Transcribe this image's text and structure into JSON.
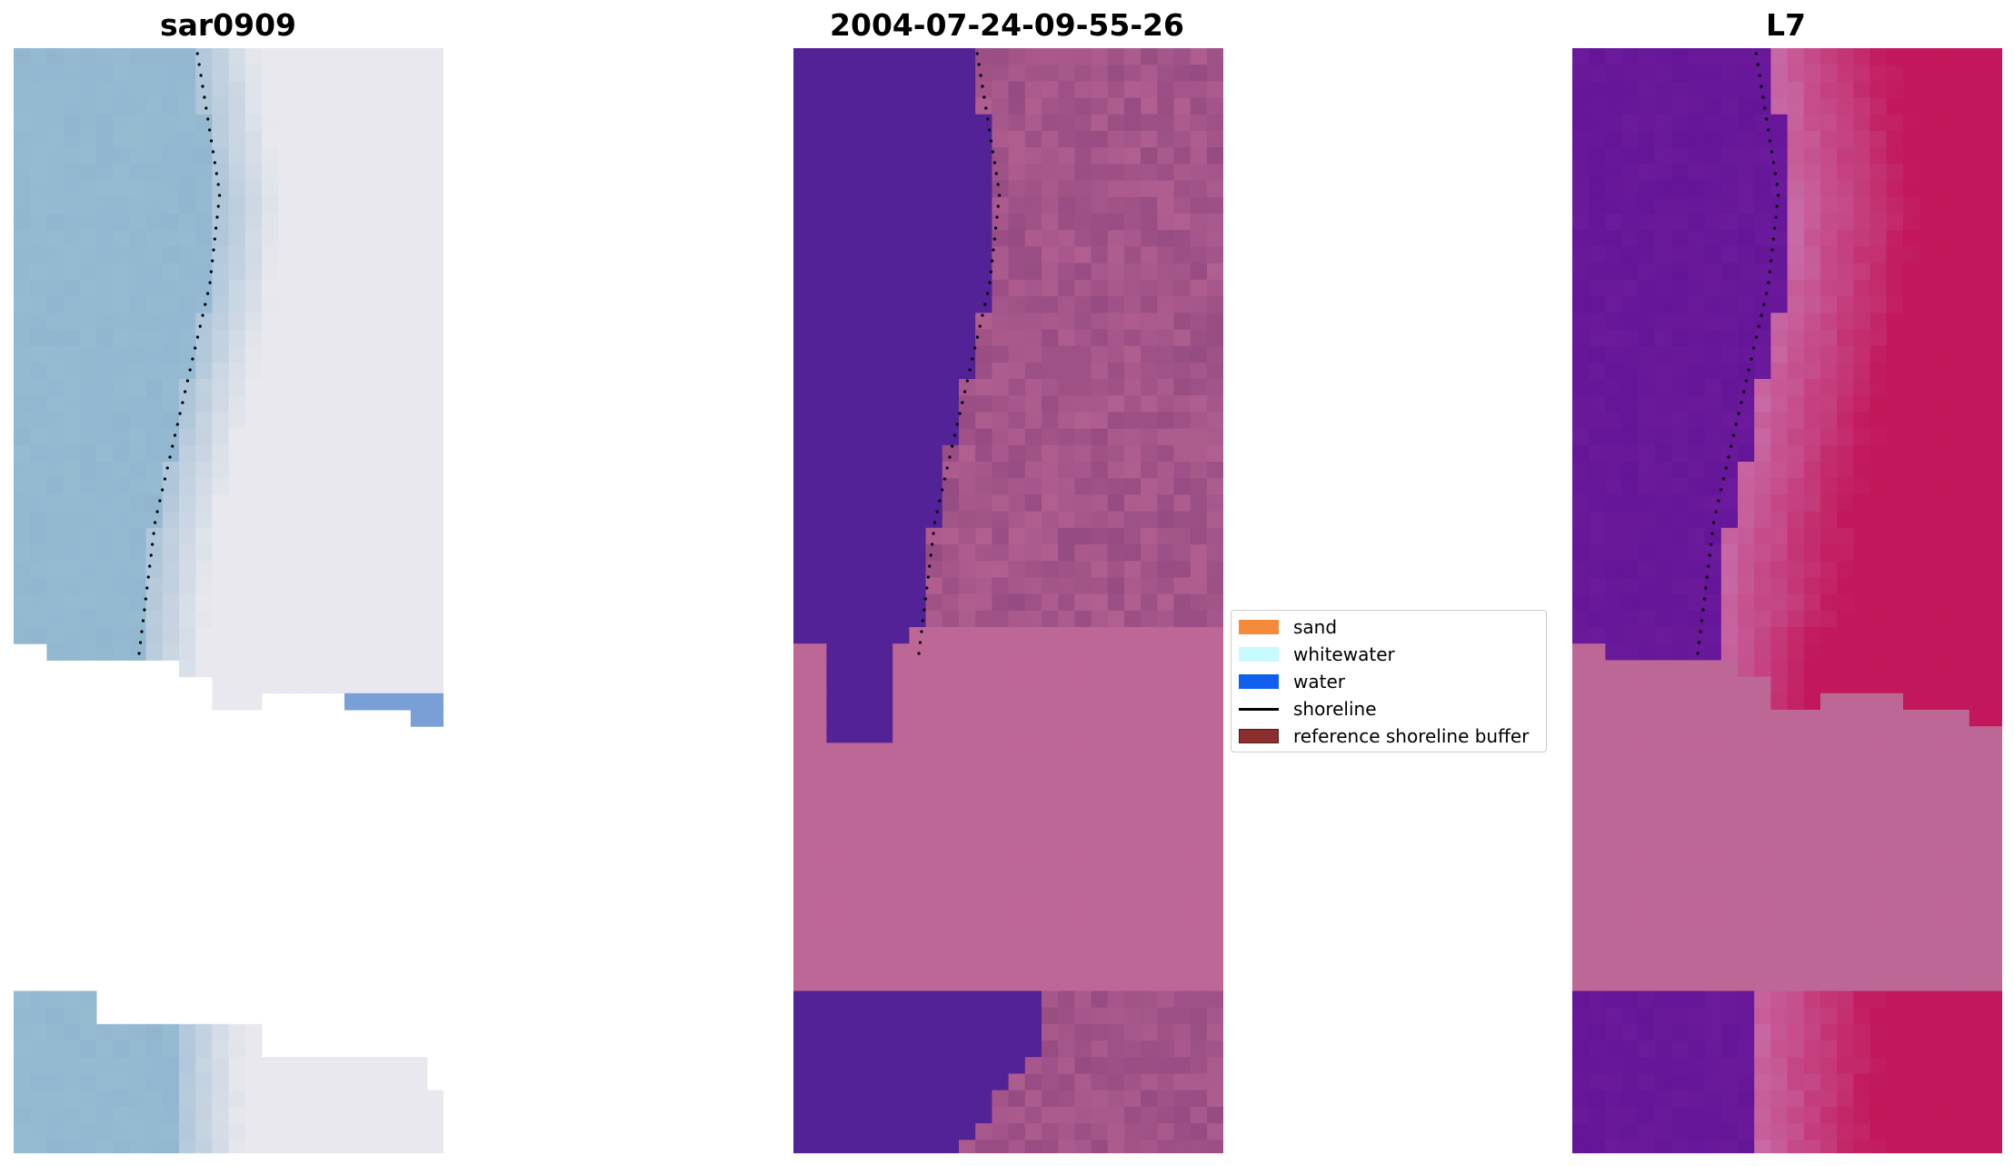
{
  "panels": [
    {
      "name": "rgb",
      "title": "sar0909"
    },
    {
      "name": "classified",
      "title": "2004-07-24-09-55-26"
    },
    {
      "name": "mndwi",
      "title": "L7"
    }
  ],
  "legend": {
    "items": [
      {
        "label": "sand",
        "color": "#f58b3a",
        "kind": "patch"
      },
      {
        "label": "whitewater",
        "color": "#c6fbff",
        "kind": "patch"
      },
      {
        "label": "water",
        "color": "#1060f0",
        "kind": "patch"
      },
      {
        "label": "shoreline",
        "color": "#000000",
        "kind": "line"
      },
      {
        "label": "reference shoreline buffer",
        "color": "#8b2e2e",
        "kind": "patch"
      }
    ]
  },
  "colors": {
    "rgb_water": "#93b6d0",
    "rgb_surf": "#e8e8ee",
    "class_water": "#532296",
    "class_buffer": "#bd6797",
    "mndwi_low": "#6a1a9a",
    "mndwi_high": "#c2185b"
  }
}
